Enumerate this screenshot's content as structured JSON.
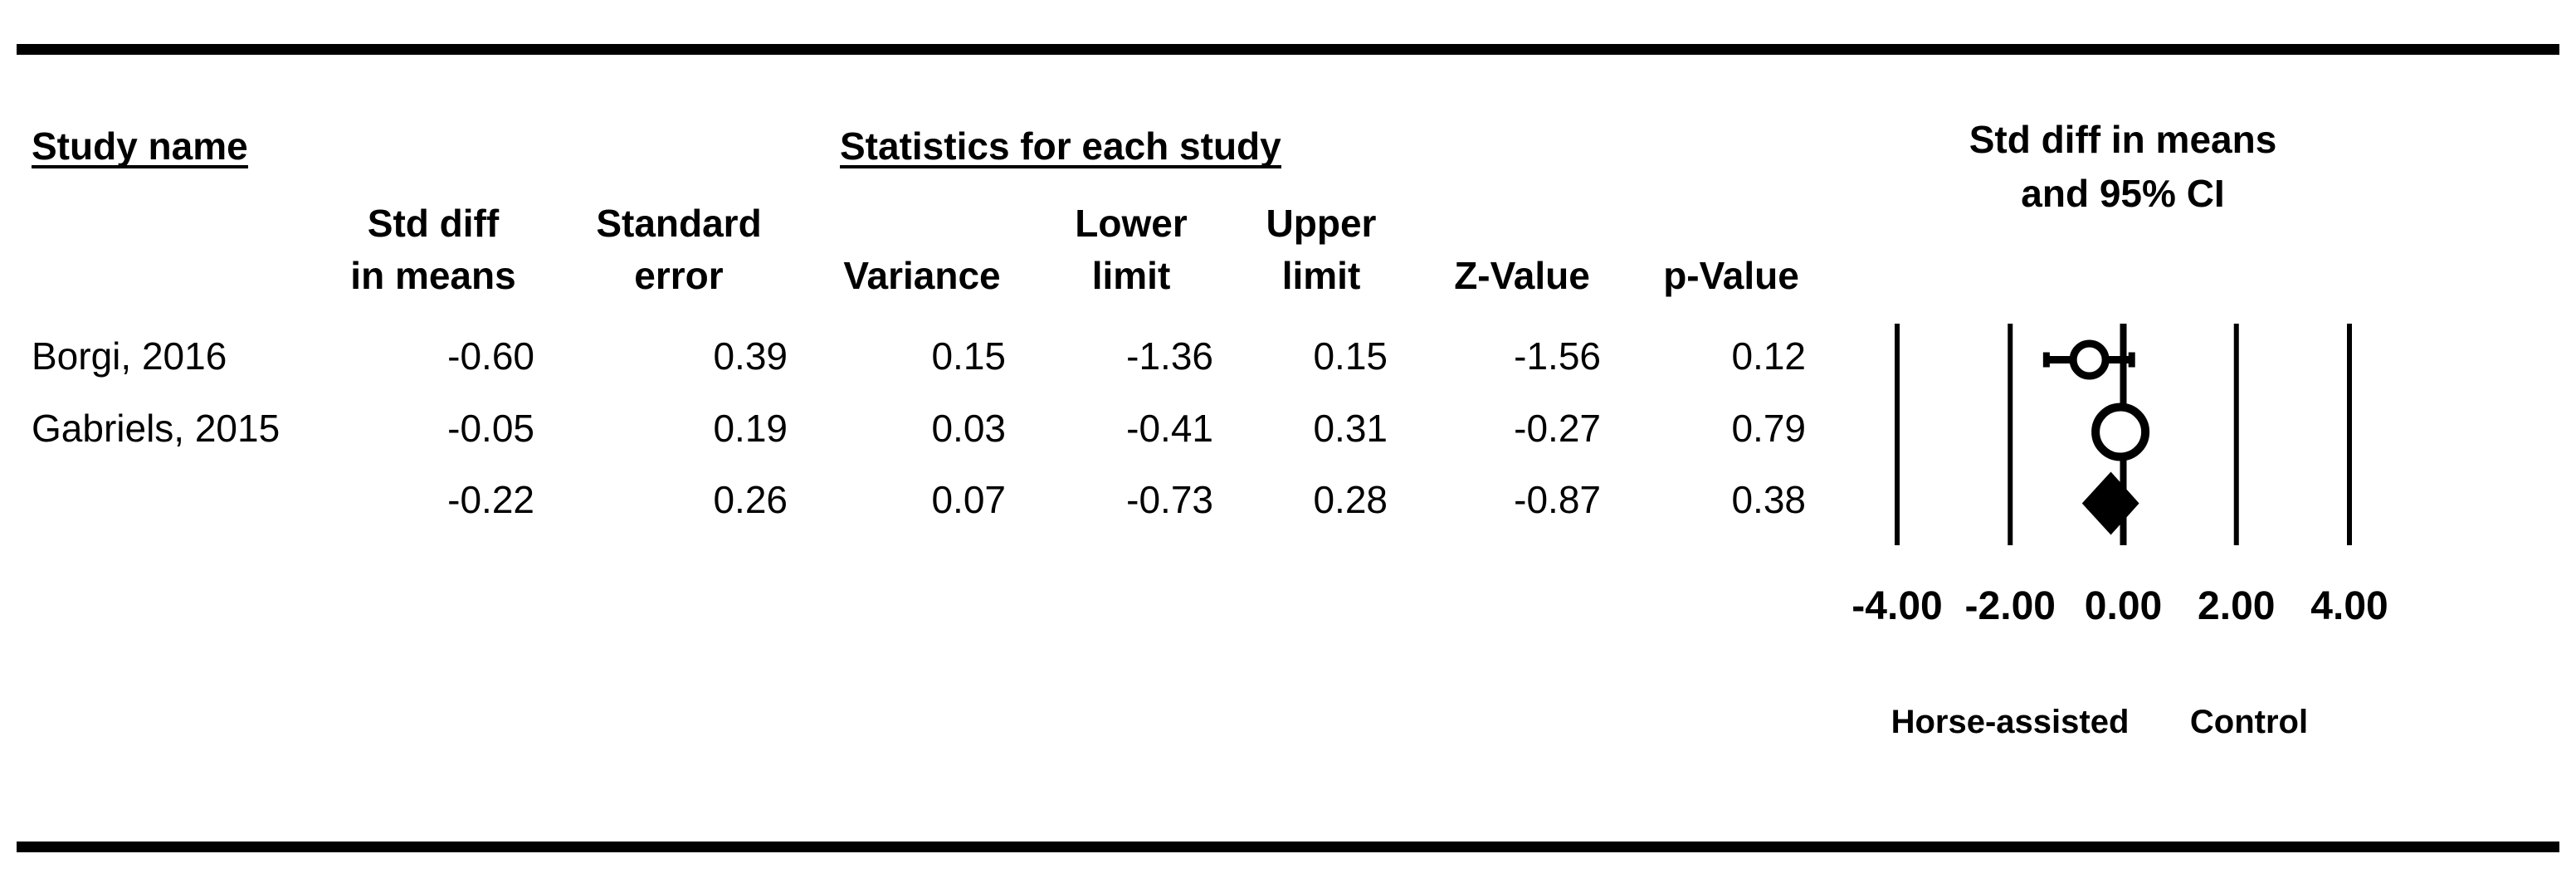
{
  "table": {
    "header_groups": {
      "study_name": "Study name",
      "statistics": "Statistics for each study"
    },
    "columns": [
      {
        "line1": "Std diff",
        "line2": "in means"
      },
      {
        "line1": "Standard",
        "line2": "error"
      },
      {
        "line1": "",
        "line2": "Variance"
      },
      {
        "line1": "Lower",
        "line2": "limit"
      },
      {
        "line1": "Upper",
        "line2": "limit"
      },
      {
        "line1": "",
        "line2": "Z-Value"
      },
      {
        "line1": "",
        "line2": "p-Value"
      }
    ],
    "rows": [
      {
        "study": "Borgi, 2016",
        "values": [
          "-0.60",
          "0.39",
          "0.15",
          "-1.36",
          "0.15",
          "-1.56",
          "0.12"
        ]
      },
      {
        "study": "Gabriels, 2015",
        "values": [
          "-0.05",
          "0.19",
          "0.03",
          "-0.41",
          "0.31",
          "-0.27",
          "0.79"
        ]
      },
      {
        "study": "",
        "values": [
          "-0.22",
          "0.26",
          "0.07",
          "-0.73",
          "0.28",
          "-0.87",
          "0.38"
        ]
      }
    ]
  },
  "plot": {
    "title_line1": "Std diff in means",
    "title_line2": "and 95% CI",
    "axis_ticks": [
      "-4.00",
      "-2.00",
      "0.00",
      "2.00",
      "4.00"
    ],
    "left_label": "Horse-assisted",
    "right_label": "Control"
  },
  "colors": {
    "foreground": "#000000",
    "background": "#ffffff"
  },
  "chart_data": {
    "type": "forest",
    "title": "Std diff in means and 95% CI",
    "x_axis": {
      "range": [
        -4,
        4
      ],
      "ticks": [
        -4,
        -2,
        0,
        2,
        4
      ],
      "tick_labels": [
        "-4.00",
        "-2.00",
        "0.00",
        "2.00",
        "4.00"
      ]
    },
    "favours_left": "Horse-assisted",
    "favours_right": "Control",
    "studies": [
      {
        "name": "Borgi, 2016",
        "std_diff_in_means": -0.6,
        "standard_error": 0.39,
        "variance": 0.15,
        "lower_limit": -1.36,
        "upper_limit": 0.15,
        "z_value": -1.56,
        "p_value": 0.12,
        "marker": "circle"
      },
      {
        "name": "Gabriels, 2015",
        "std_diff_in_means": -0.05,
        "standard_error": 0.19,
        "variance": 0.03,
        "lower_limit": -0.41,
        "upper_limit": 0.31,
        "z_value": -0.27,
        "p_value": 0.79,
        "marker": "circle"
      }
    ],
    "summary": {
      "std_diff_in_means": -0.22,
      "standard_error": 0.26,
      "variance": 0.07,
      "lower_limit": -0.73,
      "upper_limit": 0.28,
      "z_value": -0.87,
      "p_value": 0.38,
      "marker": "diamond"
    }
  }
}
